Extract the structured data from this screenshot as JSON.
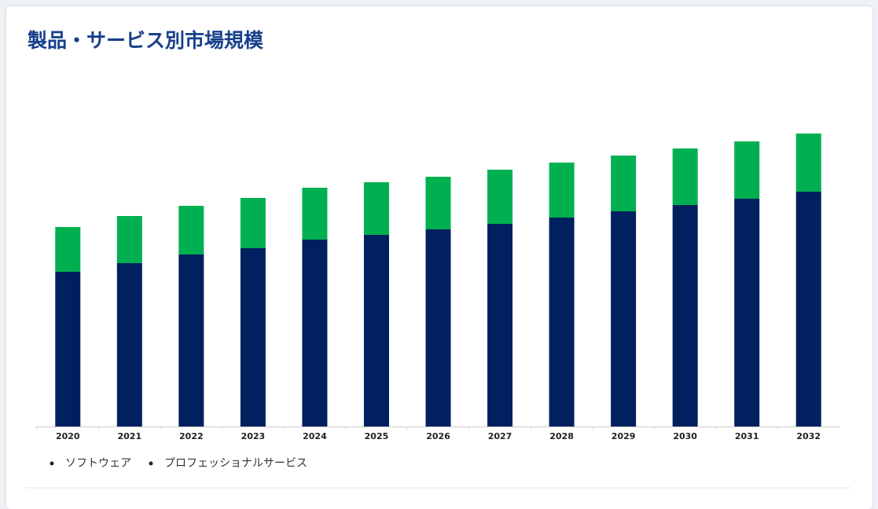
{
  "chart_data": {
    "type": "stacked-bar",
    "title": "製品・サービス別市場規模",
    "categories": [
      "2020",
      "2021",
      "2022",
      "2023",
      "2024",
      "2025",
      "2026",
      "2027",
      "2028",
      "2029",
      "2030",
      "2031",
      "2032"
    ],
    "series": [
      {
        "name": "ソフトウェア",
        "color": "#00205f",
        "values": [
          197,
          208,
          219,
          227,
          238,
          244,
          251,
          258,
          266,
          274,
          282,
          290,
          299
        ]
      },
      {
        "name": "プロフェッショナルサービス",
        "color": "#00b050",
        "values": [
          57,
          60,
          62,
          64,
          66,
          67,
          67,
          69,
          70,
          71,
          72,
          73,
          74
        ]
      }
    ],
    "ylim": [
      0,
      400
    ],
    "legend": "bottom-left"
  }
}
